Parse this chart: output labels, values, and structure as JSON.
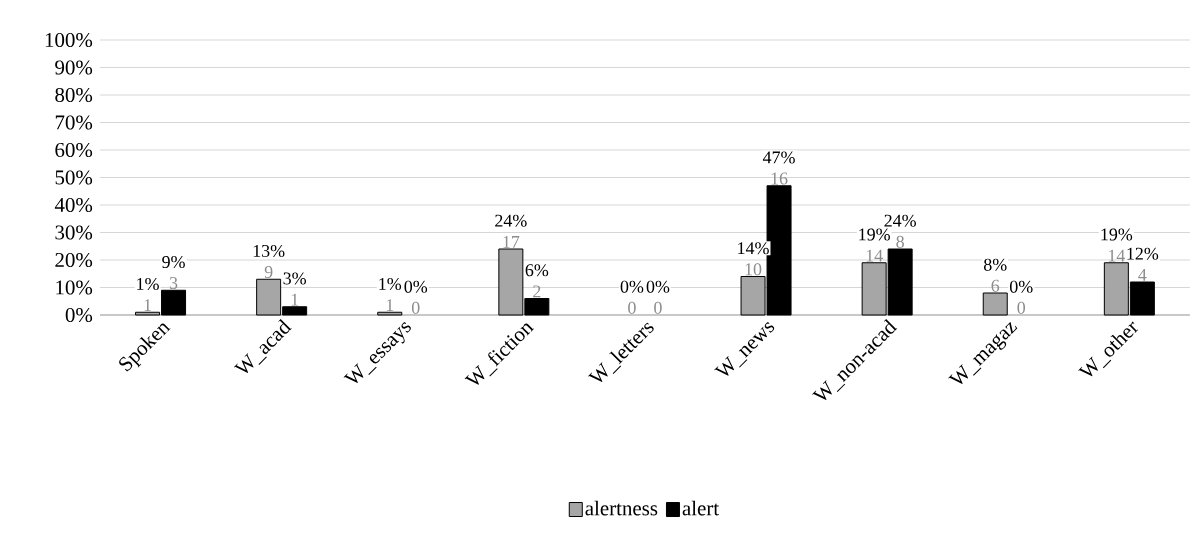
{
  "chart_data": {
    "type": "bar",
    "categories": [
      "Spoken",
      "W_acad",
      "W_essays",
      "W_fiction",
      "W_letters",
      "W_news",
      "W_non-acad",
      "W_magaz",
      "W_other"
    ],
    "series": [
      {
        "name": "alertness",
        "color": "#a6a6a6",
        "values": [
          1,
          13,
          1,
          24,
          0,
          14,
          19,
          8,
          19
        ],
        "value_labels": [
          "1%",
          "13%",
          "1%",
          "24%",
          "0%",
          "14%",
          "19%",
          "8%",
          "19%"
        ]
      },
      {
        "name": "alert",
        "color": "#000000",
        "values": [
          9,
          3,
          0,
          6,
          0,
          47,
          24,
          0,
          12
        ],
        "value_labels": [
          "9%",
          "3%",
          "0%",
          "6%",
          "0%",
          "47%",
          "24%",
          "0%",
          "12%"
        ]
      }
    ],
    "ylim": [
      0,
      100
    ],
    "yticks": [
      {
        "value": 0,
        "label": "0%"
      },
      {
        "value": 10,
        "label": "10%"
      },
      {
        "value": 20,
        "label": "20%"
      },
      {
        "value": 30,
        "label": "30%"
      },
      {
        "value": 40,
        "label": "40%"
      },
      {
        "value": 50,
        "label": "50%"
      },
      {
        "value": 60,
        "label": "60%"
      },
      {
        "value": 70,
        "label": "70%"
      },
      {
        "value": 80,
        "label": "80%"
      },
      {
        "value": 90,
        "label": "90%"
      },
      {
        "value": 100,
        "label": "100%"
      }
    ],
    "annotations": [
      {
        "text": "1",
        "x": "Spoken",
        "y": 1
      },
      {
        "text": "9",
        "x": "W_acad",
        "y": 13
      },
      {
        "text": "1",
        "x": "W_essays",
        "y": 1
      },
      {
        "text": "17",
        "x": "W_fiction",
        "y": 24
      },
      {
        "text": "0",
        "x": "W_letters",
        "y": 0
      },
      {
        "text": "10",
        "x": "W_news",
        "y": 14
      },
      {
        "text": "14",
        "x": "W_non-acad",
        "y": 19
      },
      {
        "text": "6",
        "x": "W_magaz",
        "y": 8
      },
      {
        "text": "14",
        "x": "W_other",
        "y": 19
      },
      {
        "text": "3",
        "x": "Spoken",
        "y": 9
      },
      {
        "text": "1",
        "x": "W_acad",
        "y": 3
      },
      {
        "text": "0",
        "x": "W_essays",
        "y": 0
      },
      {
        "text": "2",
        "x": "W_fiction",
        "y": 6
      },
      {
        "text": "0",
        "x": "W_letters",
        "y": 0
      },
      {
        "text": "16",
        "x": "W_news",
        "y": 47
      },
      {
        "text": "8",
        "x": "W_non-acad",
        "y": 24
      },
      {
        "text": "0",
        "x": "W_magaz",
        "y": 0
      },
      {
        "text": "4",
        "x": "W_other",
        "y": 12
      }
    ],
    "grid": "y",
    "legend": "bottom"
  }
}
